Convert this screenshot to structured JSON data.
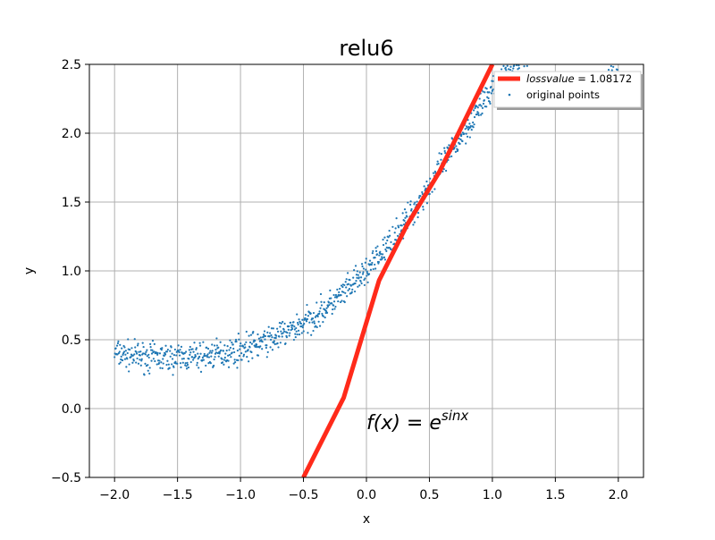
{
  "chart_data": {
    "type": "scatter",
    "title": "relu6",
    "xlabel": "x",
    "ylabel": "y",
    "xlim": [
      -2.2,
      2.2
    ],
    "ylim": [
      -0.5,
      2.5
    ],
    "xticks": [
      -2.0,
      -1.5,
      -1.0,
      -0.5,
      0.0,
      0.5,
      1.0,
      1.5,
      2.0
    ],
    "xtick_labels": [
      "−2.0",
      "−1.5",
      "−1.0",
      "−0.5",
      "0.0",
      "0.5",
      "1.0",
      "1.5",
      "2.0"
    ],
    "yticks": [
      -0.5,
      0.0,
      0.5,
      1.0,
      1.5,
      2.0,
      2.5
    ],
    "ytick_labels": [
      "−0.5",
      "0.0",
      "0.5",
      "1.0",
      "1.5",
      "2.0",
      "2.5"
    ],
    "grid": true,
    "legend_position": "top-right",
    "annotation": {
      "text_main": "f(x) = e",
      "text_sup": "sinx",
      "x": 0.0,
      "y": -0.15
    },
    "series": [
      {
        "type": "line",
        "legend_label_math": "lossvalue",
        "legend_label_rest": " = 1.08172",
        "color": "#ff2a1a",
        "x": [
          -0.5,
          -0.18,
          0.1,
          0.32,
          0.58,
          1.0
        ],
        "y": [
          -0.5,
          0.08,
          0.93,
          1.33,
          1.72,
          2.5
        ]
      },
      {
        "type": "scatter",
        "name": "original points",
        "color": "#1f77b4",
        "function": "exp(sin(x))",
        "x_range": [
          -2.0,
          2.0
        ],
        "n_points": 1200,
        "noise_amplitude": 0.05
      }
    ]
  }
}
